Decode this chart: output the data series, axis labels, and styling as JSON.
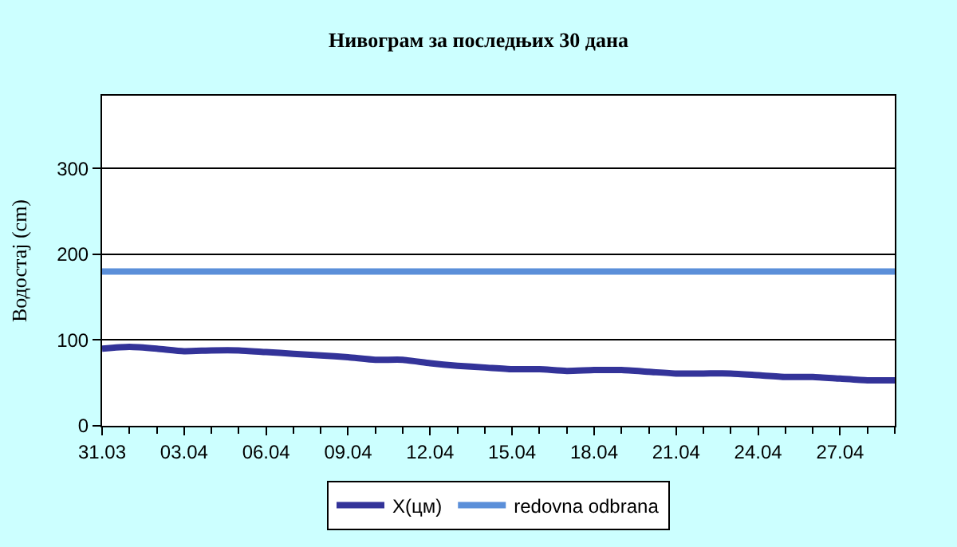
{
  "chart_data": {
    "type": "line",
    "title": "Нивограм за последњих 30 дана",
    "ylabel": "Водостај (cm)",
    "categories": [
      "31.03",
      null,
      null,
      "03.04",
      null,
      null,
      "06.04",
      null,
      null,
      "09.04",
      null,
      null,
      "12.04",
      null,
      null,
      "15.04",
      null,
      null,
      "18.04",
      null,
      null,
      "21.04",
      null,
      null,
      "24.04",
      null,
      null,
      "27.04",
      null,
      null
    ],
    "series": [
      {
        "name": "X(цм)",
        "color": "#333399",
        "values": [
          90,
          92,
          90,
          87,
          88,
          88,
          86,
          84,
          82,
          80,
          77,
          77,
          73,
          70,
          68,
          66,
          66,
          64,
          65,
          65,
          63,
          61,
          61,
          61,
          59,
          57,
          57,
          55,
          53,
          53
        ]
      },
      {
        "name": "redovna odbrana",
        "color": "#5b8fd9",
        "values": [
          180,
          180,
          180,
          180,
          180,
          180,
          180,
          180,
          180,
          180,
          180,
          180,
          180,
          180,
          180,
          180,
          180,
          180,
          180,
          180,
          180,
          180,
          180,
          180,
          180,
          180,
          180,
          180,
          180,
          180
        ]
      }
    ],
    "ylim": [
      0,
      385
    ],
    "yticks": [
      0,
      100,
      200,
      300
    ],
    "grid": "y",
    "legend": "bottom",
    "marker": "none",
    "line_style": "solid"
  }
}
